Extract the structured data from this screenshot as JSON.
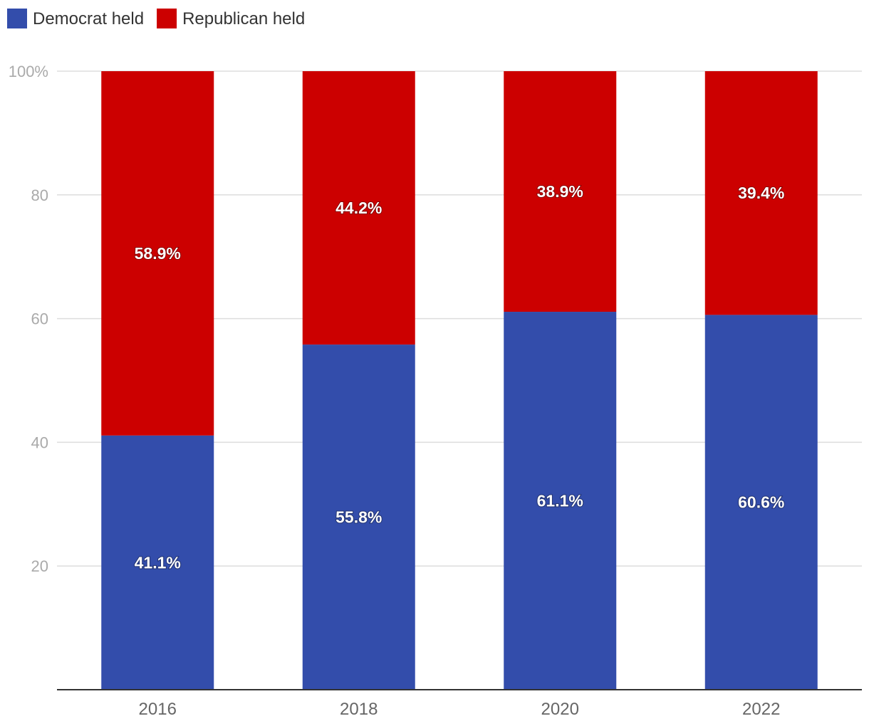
{
  "chart_data": {
    "type": "bar",
    "stacked": true,
    "categories": [
      "2016",
      "2018",
      "2020",
      "2022"
    ],
    "series": [
      {
        "name": "Democrat held",
        "color": "#334DAB",
        "values": [
          41.1,
          55.8,
          61.1,
          60.6
        ],
        "labels": [
          "41.1%",
          "55.8%",
          "61.1%",
          "60.6%"
        ]
      },
      {
        "name": "Republican held",
        "color": "#CC0000",
        "values": [
          58.9,
          44.2,
          38.9,
          39.4
        ],
        "labels": [
          "58.9%",
          "44.2%",
          "38.9%",
          "39.4%"
        ]
      }
    ],
    "ylim": [
      0,
      100
    ],
    "yticks": [
      20,
      40,
      60,
      80,
      100
    ],
    "ytick_labels": [
      "20",
      "40",
      "60",
      "80",
      "100%"
    ],
    "grid": true,
    "legend_position": "top-left",
    "title": "",
    "xlabel": "",
    "ylabel": ""
  }
}
